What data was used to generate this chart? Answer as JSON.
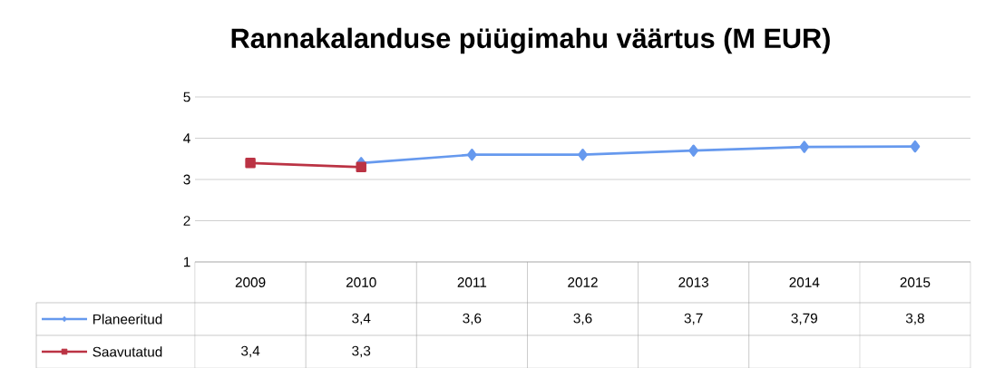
{
  "chart_data": {
    "type": "line",
    "title": "Rannakalanduse püügimahu väärtus (M EUR)",
    "categories": [
      "2009",
      "2010",
      "2011",
      "2012",
      "2013",
      "2014",
      "2015"
    ],
    "series": [
      {
        "name": "Planeeritud",
        "color": "#6699ee",
        "marker": "diamond",
        "values": [
          null,
          3.4,
          3.6,
          3.6,
          3.7,
          3.79,
          3.8
        ],
        "value_labels": [
          null,
          "3,4",
          "3,6",
          "3,6",
          "3,7",
          "3,79",
          "3,8"
        ]
      },
      {
        "name": "Saavutatud",
        "color": "#bb3344",
        "marker": "square",
        "values": [
          3.4,
          3.3,
          null,
          null,
          null,
          null,
          null
        ],
        "value_labels": [
          "3,4",
          "3,3",
          null,
          null,
          null,
          null,
          null
        ]
      }
    ],
    "ylim": [
      1,
      5
    ],
    "yticks": [
      1,
      2,
      3,
      4,
      5
    ],
    "grid": "y",
    "legend": "bottom"
  }
}
